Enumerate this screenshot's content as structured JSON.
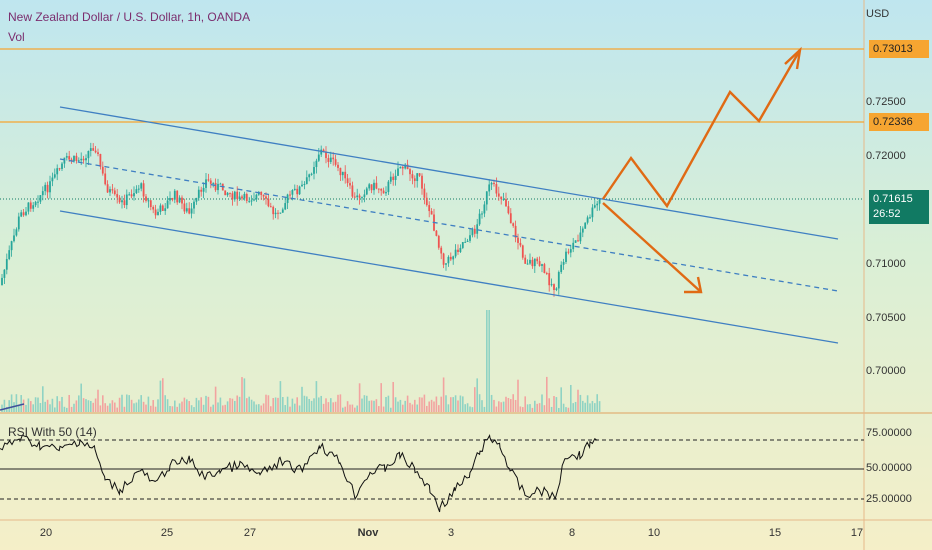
{
  "header": {
    "title": "New Zealand Dollar / U.S. Dollar, 1h, OANDA",
    "vol_label": "Vol",
    "currency": "USD"
  },
  "price_axis": {
    "ticks": [
      "0.72500",
      "0.72000",
      "0.71000",
      "0.70500",
      "0.70000"
    ],
    "tags": {
      "upper_target": "0.73013",
      "resistance": "0.72336",
      "last_price": "0.71615",
      "countdown": "26:52"
    }
  },
  "rsi": {
    "label": "RSI With 50 (14)",
    "ticks": [
      "75.00000",
      "50.00000",
      "25.00000"
    ]
  },
  "time_axis": {
    "labels": [
      "20",
      "25",
      "27",
      "Nov",
      "3",
      "8",
      "10",
      "15",
      "17"
    ]
  },
  "colors": {
    "bull": "#26a69a",
    "bear": "#ef5350",
    "channel": "#3f7fc2",
    "projection": "#e06a14",
    "level": "#f6a531",
    "last_price_tag": "#117a63"
  }
}
